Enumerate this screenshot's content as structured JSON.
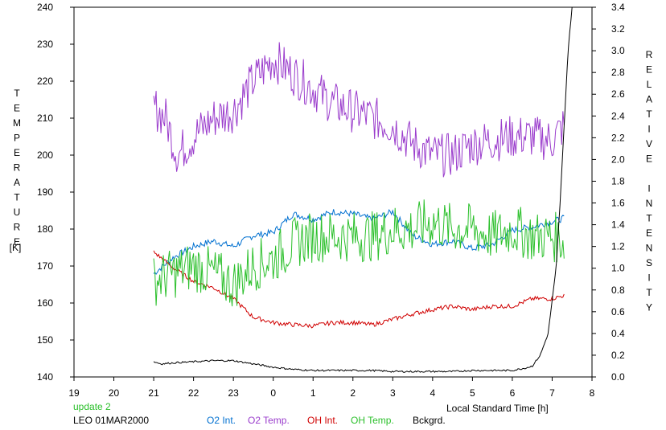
{
  "chart_data": {
    "type": "line",
    "ylabel_left": "TEMPERATURE",
    "ylabel_left_unit": "[K]",
    "ylabel_right": "RELATIVE INTENSITY",
    "xlabel": "Local Standard Time [h]",
    "xlim": [
      19,
      32
    ],
    "ylim_left": [
      140,
      240
    ],
    "ylim_right": [
      0.0,
      3.4
    ],
    "x_ticks": [
      "19",
      "20",
      "21",
      "22",
      "23",
      "0",
      "1",
      "2",
      "3",
      "4",
      "5",
      "6",
      "7",
      "8"
    ],
    "y_ticks_left": [
      "140",
      "150",
      "160",
      "170",
      "180",
      "190",
      "200",
      "210",
      "220",
      "230",
      "240"
    ],
    "y_ticks_right": [
      "0.0",
      "0.2",
      "0.4",
      "0.6",
      "0.8",
      "1.0",
      "1.2",
      "1.4",
      "1.6",
      "1.8",
      "2.0",
      "2.2",
      "2.4",
      "2.6",
      "2.8",
      "3.0",
      "3.2",
      "3.4"
    ],
    "grid": false,
    "series": [
      {
        "name": "O2 Int.",
        "axis": "right",
        "color": "#0070d0",
        "x": [
          21.0,
          21.5,
          22.0,
          22.5,
          23.0,
          23.5,
          24.0,
          24.5,
          25.0,
          25.5,
          26.0,
          26.5,
          27.0,
          27.5,
          28.0,
          28.5,
          29.0,
          29.5,
          30.0,
          30.5,
          31.3
        ],
        "y": [
          0.95,
          1.1,
          1.2,
          1.25,
          1.2,
          1.3,
          1.33,
          1.5,
          1.45,
          1.52,
          1.5,
          1.45,
          1.52,
          1.3,
          1.22,
          1.25,
          1.18,
          1.22,
          1.35,
          1.38,
          1.46
        ],
        "noise": 0.03
      },
      {
        "name": "O2 Temp.",
        "axis": "left",
        "color": "#9a3ccc",
        "x": [
          21.0,
          21.3,
          21.6,
          22.0,
          22.5,
          23.0,
          23.5,
          24.0,
          24.5,
          25.0,
          25.5,
          26.0,
          26.5,
          27.0,
          27.5,
          28.0,
          28.5,
          29.0,
          29.5,
          30.0,
          30.5,
          31.0,
          31.3
        ],
        "y": [
          213,
          210,
          200,
          205,
          210,
          212,
          220,
          226,
          222,
          218,
          214,
          212,
          210,
          208,
          203,
          200,
          200,
          203,
          204,
          205,
          205,
          204,
          208
        ],
        "noise": 6
      },
      {
        "name": "OH Int.",
        "axis": "right",
        "color": "#d00000",
        "x": [
          21.0,
          21.5,
          22.0,
          22.5,
          23.0,
          23.5,
          24.0,
          24.5,
          25.0,
          25.5,
          26.0,
          26.5,
          27.0,
          27.5,
          28.0,
          28.5,
          29.0,
          29.5,
          30.0,
          30.5,
          31.0,
          31.3
        ],
        "y": [
          1.15,
          1.0,
          0.88,
          0.82,
          0.72,
          0.55,
          0.5,
          0.48,
          0.47,
          0.5,
          0.5,
          0.48,
          0.53,
          0.58,
          0.62,
          0.65,
          0.62,
          0.65,
          0.65,
          0.72,
          0.72,
          0.75
        ],
        "noise": 0.02
      },
      {
        "name": "OH Temp.",
        "axis": "left",
        "color": "#2cc02c",
        "x": [
          21.0,
          21.5,
          22.0,
          22.5,
          23.0,
          23.5,
          24.0,
          24.5,
          25.0,
          25.5,
          26.0,
          26.5,
          27.0,
          27.5,
          28.0,
          28.5,
          29.0,
          29.5,
          30.0,
          30.5,
          31.0,
          31.3
        ],
        "y": [
          166,
          168,
          170,
          168,
          165,
          170,
          172,
          176,
          178,
          178,
          178,
          178,
          180,
          180,
          182,
          180,
          180,
          178,
          180,
          178,
          178,
          177
        ],
        "noise": 7
      },
      {
        "name": "Bckgrd.",
        "axis": "right",
        "color": "#000000",
        "x": [
          21.0,
          21.2,
          21.5,
          22.0,
          22.5,
          23.0,
          23.5,
          24.0,
          24.5,
          25.0,
          25.5,
          26.0,
          26.5,
          27.0,
          27.5,
          28.0,
          28.5,
          29.0,
          29.5,
          30.0,
          30.3,
          30.5,
          30.7,
          30.9,
          31.0,
          31.1,
          31.2,
          31.3,
          31.4,
          31.5
        ],
        "y": [
          0.14,
          0.12,
          0.13,
          0.14,
          0.15,
          0.15,
          0.12,
          0.09,
          0.07,
          0.06,
          0.06,
          0.06,
          0.06,
          0.05,
          0.05,
          0.05,
          0.05,
          0.06,
          0.06,
          0.06,
          0.08,
          0.1,
          0.2,
          0.4,
          0.7,
          1.0,
          1.6,
          2.3,
          3.0,
          3.4
        ],
        "noise": 0.008
      }
    ]
  },
  "footer": {
    "update_label": "update 2",
    "update_color": "#2cc02c",
    "station_label": "LEO 01MAR2000"
  }
}
